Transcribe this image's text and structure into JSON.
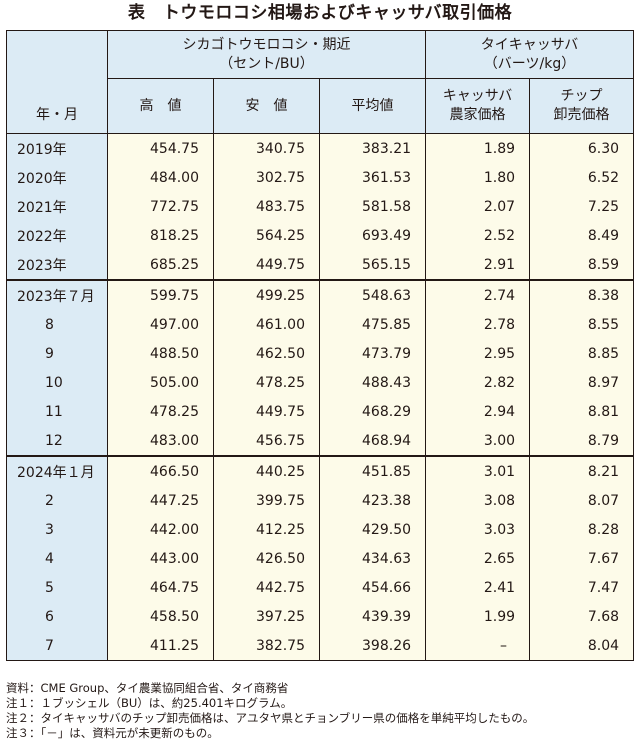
{
  "title": "表　トウモロコシ相場およびキャッサバ取引価格",
  "header": {
    "period_col": "年・月",
    "group_chicago": "シカゴトウモロコシ・期近",
    "group_chicago_unit": "（セント/BU）",
    "group_thai": "タイキャッサバ",
    "group_thai_unit": "（バーツ/kg）",
    "col_high": "高　値",
    "col_low": "安　値",
    "col_avg": "平均値",
    "col_farm_1": "キャッサバ",
    "col_farm_2": "農家価格",
    "col_chip_1": "チップ",
    "col_chip_2": "卸売価格"
  },
  "rows": [
    {
      "label": "2019年",
      "high": "454.75",
      "low": "340.75",
      "avg": "383.21",
      "farm": "1.89",
      "chip": "6.30"
    },
    {
      "label": "2020年",
      "high": "484.00",
      "low": "302.75",
      "avg": "361.53",
      "farm": "1.80",
      "chip": "6.52"
    },
    {
      "label": "2021年",
      "high": "772.75",
      "low": "483.75",
      "avg": "581.58",
      "farm": "2.07",
      "chip": "7.25"
    },
    {
      "label": "2022年",
      "high": "818.25",
      "low": "564.25",
      "avg": "693.49",
      "farm": "2.52",
      "chip": "8.49"
    },
    {
      "label": "2023年",
      "high": "685.25",
      "low": "449.75",
      "avg": "565.15",
      "farm": "2.91",
      "chip": "8.59"
    },
    {
      "label": "2023年７月",
      "high": "599.75",
      "low": "499.25",
      "avg": "548.63",
      "farm": "2.74",
      "chip": "8.38"
    },
    {
      "label": "8",
      "high": "497.00",
      "low": "461.00",
      "avg": "475.85",
      "farm": "2.78",
      "chip": "8.55"
    },
    {
      "label": "9",
      "high": "488.50",
      "low": "462.50",
      "avg": "473.79",
      "farm": "2.95",
      "chip": "8.85"
    },
    {
      "label": "10",
      "high": "505.00",
      "low": "478.25",
      "avg": "488.43",
      "farm": "2.82",
      "chip": "8.97"
    },
    {
      "label": "11",
      "high": "478.25",
      "low": "449.75",
      "avg": "468.29",
      "farm": "2.94",
      "chip": "8.81"
    },
    {
      "label": "12",
      "high": "483.00",
      "low": "456.75",
      "avg": "468.94",
      "farm": "3.00",
      "chip": "8.79"
    },
    {
      "label": "2024年１月",
      "high": "466.50",
      "low": "440.25",
      "avg": "451.85",
      "farm": "3.01",
      "chip": "8.21"
    },
    {
      "label": "2",
      "high": "447.25",
      "low": "399.75",
      "avg": "423.38",
      "farm": "3.08",
      "chip": "8.07"
    },
    {
      "label": "3",
      "high": "442.00",
      "low": "412.25",
      "avg": "429.50",
      "farm": "3.03",
      "chip": "8.28"
    },
    {
      "label": "4",
      "high": "443.00",
      "low": "426.50",
      "avg": "434.63",
      "farm": "2.65",
      "chip": "7.67"
    },
    {
      "label": "5",
      "high": "464.75",
      "low": "442.75",
      "avg": "454.66",
      "farm": "2.41",
      "chip": "7.47"
    },
    {
      "label": "6",
      "high": "458.50",
      "low": "397.25",
      "avg": "439.39",
      "farm": "1.99",
      "chip": "7.68"
    },
    {
      "label": "7",
      "high": "411.25",
      "low": "382.75",
      "avg": "398.26",
      "farm": "–",
      "chip": "8.04"
    }
  ],
  "notes": [
    "資料：CME Group、タイ農業協同組合省、タイ商務省",
    "注１：１ブッシェル（BU）は、約25.401キログラム。",
    "注２：タイキャッサバのチップ卸売価格は、アユタヤ県とチョンブリー県の価格を単純平均したもの。",
    "注３：「－」は、資料元が未更新のもの。"
  ]
}
